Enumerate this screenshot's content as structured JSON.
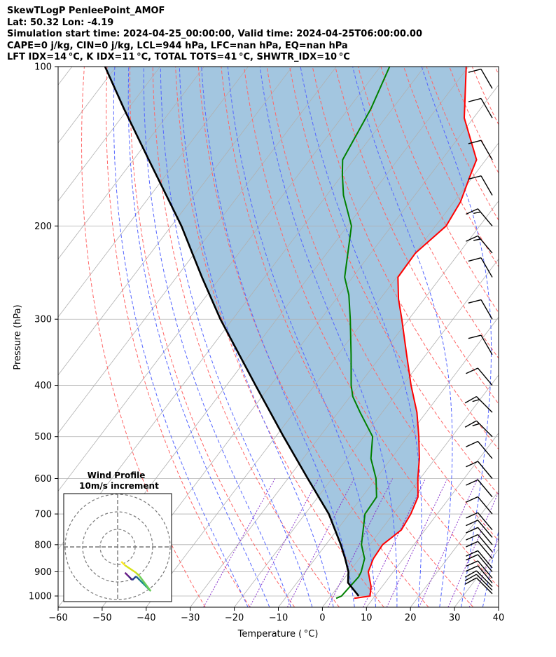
{
  "header": {
    "line1": "SkewTLogP PenleePoint_AMOF",
    "line2": "Lat: 50.32   Lon: -4.19",
    "line3": "Simulation start time: 2024-04-25_00:00:00, Valid time: 2024-04-25T06:00:00.00",
    "line4": "CAPE=0 j/kg, CIN=0 j/kg, LCL=944 hPa, LFC=nan hPa, EQ=nan hPa",
    "line5": "LFT IDX=14 °C, K IDX=11 °C, TOTAL TOTS=41 °C, SHWTR_IDX=10 °C"
  },
  "chart_data": {
    "type": "skewt-logp",
    "xlabel": "Temperature ( °C)",
    "ylabel": "Pressure (hPa)",
    "xlim": [
      -60,
      40
    ],
    "ylim": [
      1050,
      100
    ],
    "x_scale": "linear (skewed isotherms)",
    "y_scale": "log",
    "grid": true,
    "x_ticks": [
      -60,
      -50,
      -40,
      -30,
      -20,
      -10,
      0,
      10,
      20,
      30,
      40
    ],
    "x_tick_labels": [
      "−60",
      "−50",
      "−40",
      "−30",
      "−20",
      "−10",
      "0",
      "10",
      "20",
      "30",
      "40"
    ],
    "y_ticks": [
      1000,
      900,
      800,
      700,
      600,
      500,
      400,
      300,
      200,
      100
    ],
    "y_tick_labels": [
      "1000",
      "900",
      "800",
      "700",
      "600",
      "500",
      "400",
      "300",
      "200",
      "100"
    ],
    "colors": {
      "temperature": "#ff0000",
      "dewpoint": "#008000",
      "parcel": "#000000",
      "shading": "#a3c6e0",
      "dry_adiabats": "#ff6666",
      "moist_adiabats": "#5566ff",
      "mixing_ratio": "#8833cc",
      "isotherms": "#b0b0b0"
    },
    "series": [
      {
        "key": "temperature",
        "pressure": [
          1010,
          1000,
          960,
          900,
          850,
          800,
          750,
          700,
          650,
          600,
          550,
          500,
          450,
          400,
          350,
          300,
          275,
          250,
          225,
          200,
          180,
          160,
          150,
          125,
          100
        ],
        "values": [
          5.7,
          8.9,
          7.5,
          4.3,
          3.2,
          2.9,
          4.6,
          4.0,
          2.7,
          -0.5,
          -3.6,
          -7.5,
          -12.1,
          -18.1,
          -24.4,
          -31.6,
          -35.8,
          -39.7,
          -39.9,
          -37.6,
          -38.5,
          -40.9,
          -42.1,
          -52.1,
          -60.5
        ]
      },
      {
        "key": "dewpoint",
        "pressure": [
          1010,
          1000,
          960,
          920,
          900,
          850,
          800,
          700,
          650,
          600,
          550,
          500,
          450,
          420,
          400,
          350,
          300,
          270,
          250,
          200,
          175,
          160,
          150,
          120,
          100
        ],
        "values": [
          1.6,
          2.4,
          2.7,
          3.0,
          2.7,
          1.2,
          -1.9,
          -6.4,
          -6.7,
          -10.0,
          -14.6,
          -18.0,
          -25.0,
          -29.4,
          -31.7,
          -37.0,
          -43.3,
          -47.8,
          -51.8,
          -59.1,
          -66.2,
          -70.0,
          -72.5,
          -74.9,
          -77.9
        ]
      },
      {
        "key": "parcel",
        "pressure": [
          1000,
          944,
          900,
          850,
          800,
          700,
          600,
          500,
          400,
          300,
          250,
          200,
          150,
          120,
          100
        ],
        "values": [
          6.3,
          1.6,
          -0.2,
          -3.2,
          -6.6,
          -14.6,
          -25.5,
          -38.2,
          -53.4,
          -72.8,
          -84.2,
          -97.7,
          -116.5,
          -131.0,
          -142.5
        ]
      }
    ],
    "wind_barbs": {
      "pressure": [
        990,
        975,
        960,
        945,
        925,
        900,
        885,
        850,
        825,
        800,
        775,
        750,
        700,
        650,
        600,
        550,
        500,
        450,
        400,
        350,
        300,
        250,
        225,
        200,
        175,
        150,
        125,
        110
      ],
      "speed_kt": [
        10,
        10,
        10,
        10,
        10,
        10,
        10,
        10,
        10,
        10,
        10,
        10,
        10,
        10,
        10,
        10,
        15,
        15,
        10,
        10,
        10,
        10,
        15,
        15,
        10,
        10,
        10,
        10
      ],
      "direction_deg": [
        315,
        315,
        315,
        320,
        320,
        320,
        320,
        320,
        320,
        320,
        320,
        320,
        320,
        320,
        320,
        320,
        315,
        315,
        320,
        330,
        330,
        330,
        320,
        320,
        330,
        330,
        330,
        330
      ]
    },
    "inset": {
      "title": "Wind Profile",
      "subtitle": "10m/s increment",
      "rings_ms": [
        10,
        20,
        30
      ],
      "u_ms": [
        1.0,
        1.5,
        2.0,
        2.5,
        3.0,
        3.5,
        4.0,
        4.5,
        3.0,
        2.5,
        1.0,
        0.5
      ],
      "v_ms": [
        -3.5,
        -4.0,
        -4.5,
        -4.0,
        -4.5,
        -5.0,
        -5.5,
        -6.0,
        -4.0,
        -3.5,
        -2.5,
        -2.0
      ]
    }
  }
}
